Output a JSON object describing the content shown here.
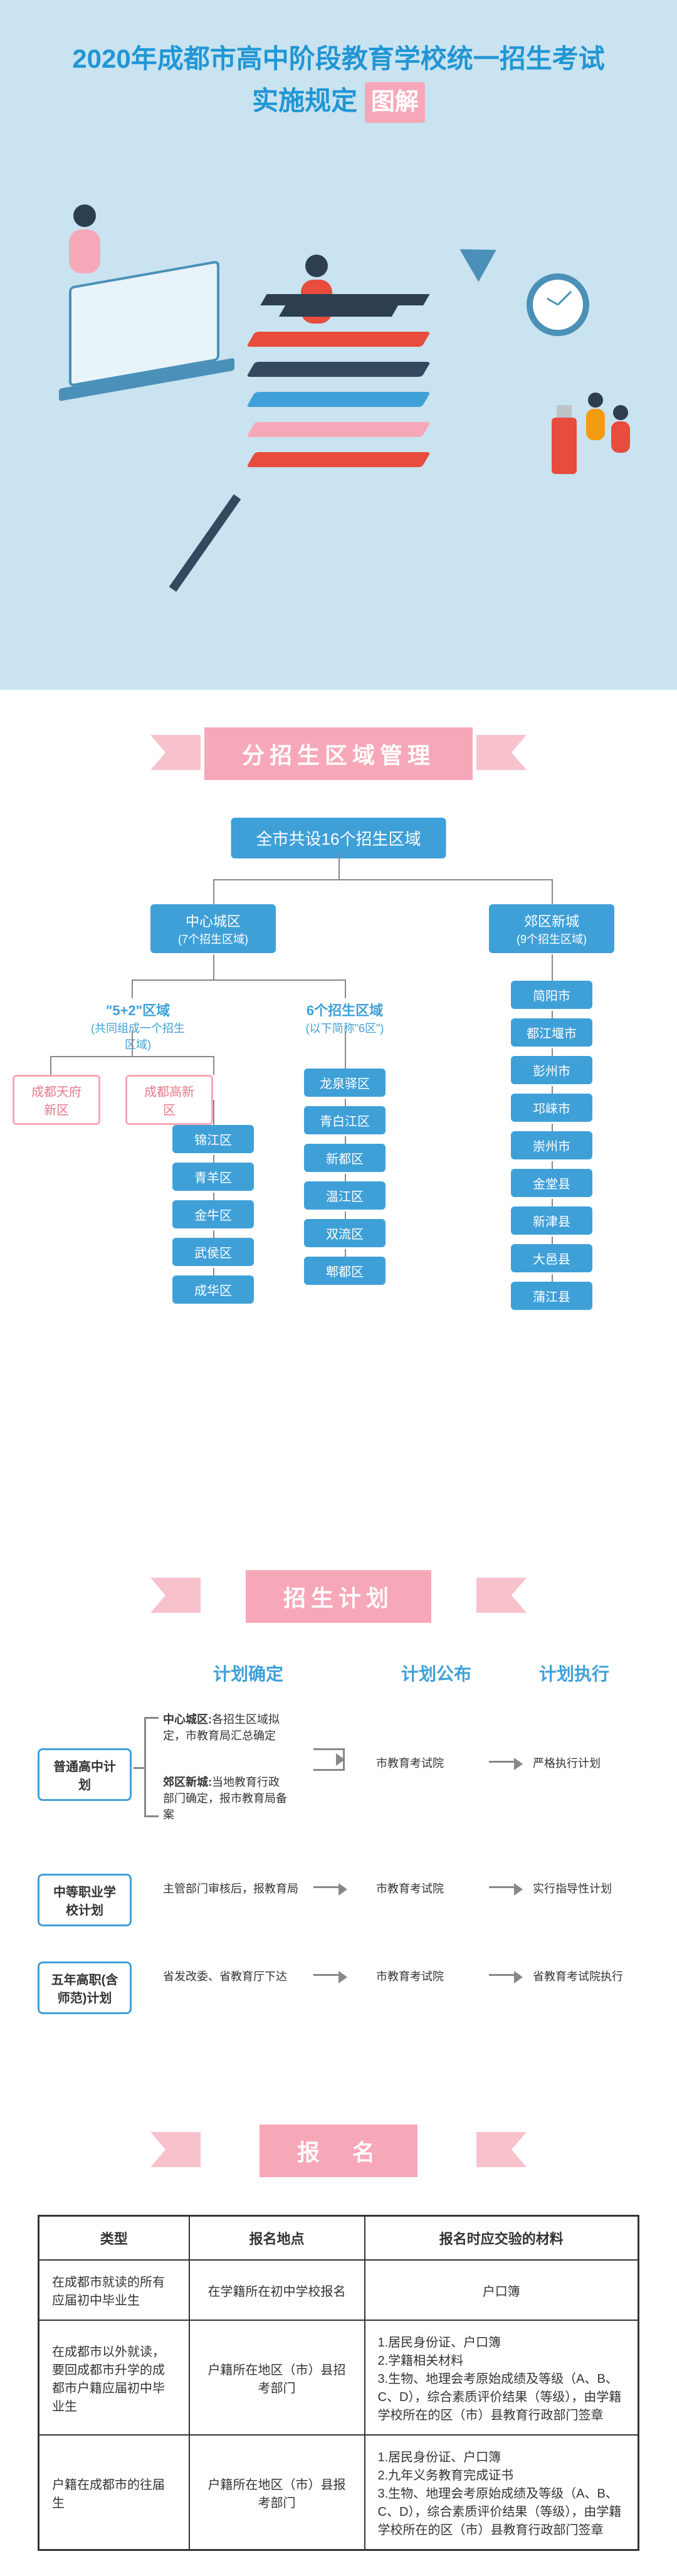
{
  "hero": {
    "title_line1": "2020年成都市高中阶段教育学校统一招生考试",
    "title_line2": "实施规定",
    "title_badge": "图解",
    "colors": {
      "hero_bg": "#c9e3f0",
      "title_color": "#2196d4",
      "badge_bg": "#f7a8b8",
      "book_colors": [
        "#e74c3c",
        "#34495e",
        "#3fa0d8",
        "#f7a8b8",
        "#e74c3c"
      ],
      "laptop_border": "#4a90b8",
      "clock_border": "#4a90b8",
      "usb_color": "#e74c3c",
      "person_body_colors": [
        "#f7a8b8",
        "#e74c3c",
        "#f39c12",
        "#e74c3c",
        "#34495e"
      ]
    }
  },
  "section1": {
    "ribbon": "分招生区域管理",
    "root": "全市共设16个招生区域",
    "center": {
      "title": "中心城区",
      "subtitle": "(7个招生区域)"
    },
    "suburb": {
      "title": "郊区新城",
      "subtitle": "(9个招生区域)"
    },
    "five_two": {
      "title": "\"5+2\"区域",
      "subtitle": "(共同组成一个招生区域)"
    },
    "six": {
      "title": "6个招生区域",
      "subtitle": "(以下简称\"6区\")"
    },
    "five_two_special": [
      "成都天府新区",
      "成都高新区"
    ],
    "five_two_districts": [
      "锦江区",
      "青羊区",
      "金牛区",
      "武侯区",
      "成华区"
    ],
    "six_districts": [
      "龙泉驿区",
      "青白江区",
      "新都区",
      "温江区",
      "双流区",
      "郫都区"
    ],
    "suburb_list": [
      "简阳市",
      "都江堰市",
      "彭州市",
      "邛崃市",
      "崇州市",
      "金堂县",
      "新津县",
      "大邑县",
      "蒲江县"
    ],
    "colors": {
      "ribbon_bg": "#f7a8b8",
      "node_bg": "#3fa0d8",
      "outline_border": "#f7a8b8",
      "outline_text": "#e67a8a",
      "label_color": "#3fa0d8",
      "line_color": "#888888"
    }
  },
  "section2": {
    "ribbon": "招生计划",
    "headers": [
      "计划确定",
      "计划公布",
      "计划执行"
    ],
    "rows": [
      {
        "label": "普通高中计划",
        "determine": [
          {
            "bold": "中心城区:",
            "text": "各招生区域拟定，市教育局汇总确定"
          },
          {
            "bold": "郊区新城:",
            "text": "当地教育行政部门确定，报市教育局备案"
          }
        ],
        "publish": "市教育考试院",
        "execute": "严格执行计划"
      },
      {
        "label": "中等职业学校计划",
        "determine_text": "主管部门审核后，报教育局",
        "publish": "市教育考试院",
        "execute": "实行指导性计划"
      },
      {
        "label": "五年高职(含师范)计划",
        "determine_text": "省发改委、省教育厅下达",
        "publish": "市教育考试院",
        "execute": "省教育考试院执行"
      }
    ],
    "colors": {
      "header_color": "#3fa0d8",
      "label_border": "#3fa0d8",
      "arrow_color": "#888888"
    }
  },
  "section3": {
    "ribbon": "报　名",
    "table": {
      "headers": [
        "类型",
        "报名地点",
        "报名时应交验的材料"
      ],
      "rows": [
        {
          "type": "在成都市就读的所有应届初中毕业生",
          "location": "在学籍所在初中学校报名",
          "materials": "户口簿"
        },
        {
          "type": "在成都市以外就读，要回成都市升学的成都市户籍应届初中毕业生",
          "location": "户籍所在地区（市）县招考部门",
          "materials": "1.居民身份证、户口簿\n2.学籍相关材料\n3.生物、地理会考原始成绩及等级（A、B、C、D），综合素质评价结果（等级），由学籍学校所在的区（市）县教育行政部门签章"
        },
        {
          "type": "户籍在成都市的往届生",
          "location": "户籍所在地区（市）县报考部门",
          "materials": "1.居民身份证、户口簿\n2.九年义务教育完成证书\n3.生物、地理会考原始成绩及等级（A、B、C、D），综合素质评价结果（等级），由学籍学校所在的区（市）县教育行政部门签章"
        }
      ]
    },
    "colors": {
      "border_color": "#333333"
    }
  }
}
